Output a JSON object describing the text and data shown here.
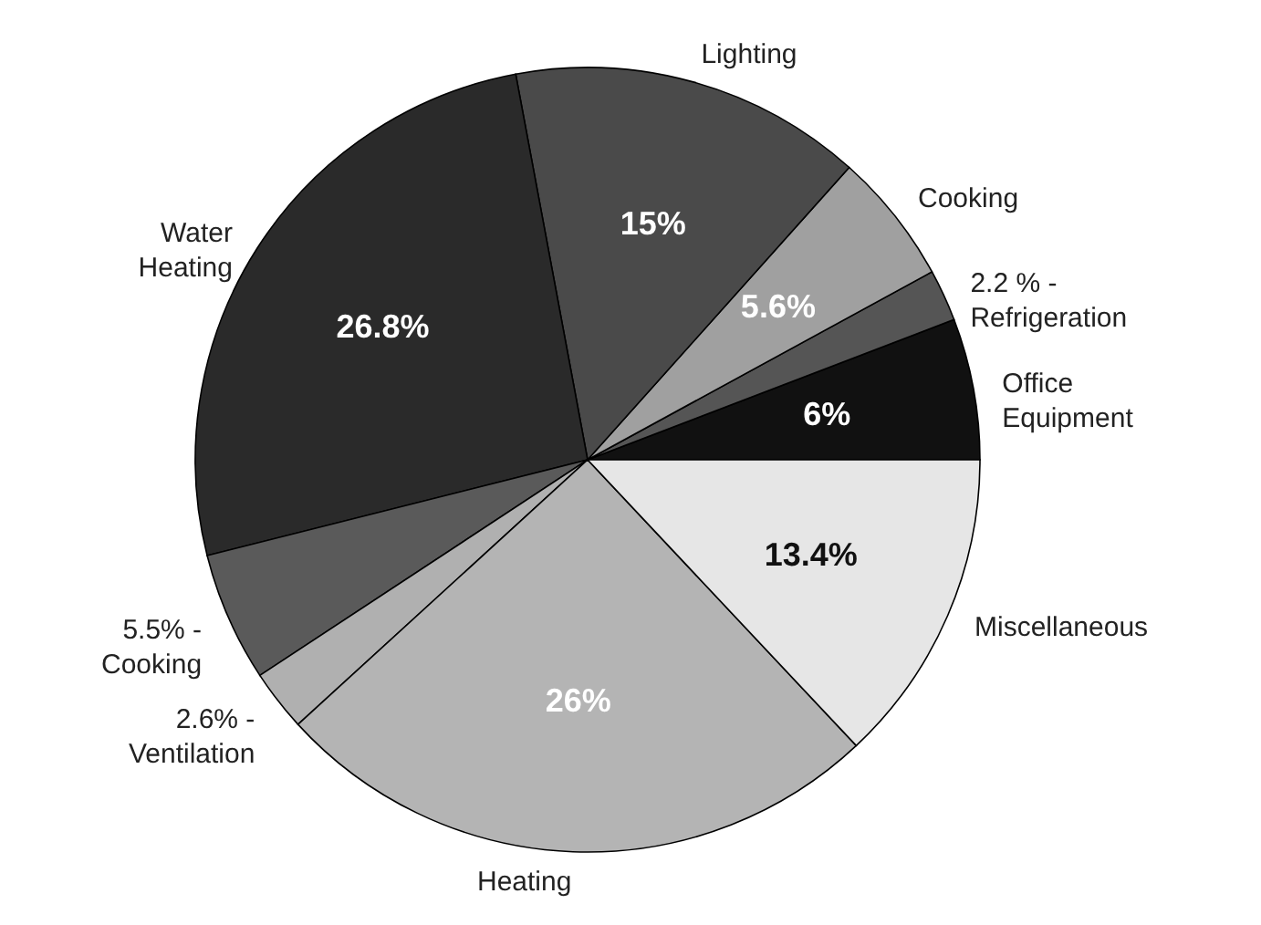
{
  "chart_data": {
    "type": "pie",
    "categories": [
      "Office Equipment",
      "2.2 % - Refrigeration",
      "Cooking",
      "Lighting",
      "Water Heating",
      "5.5% - Cooking",
      "2.6% - Ventilation",
      "Heating",
      "Miscellaneous"
    ],
    "values": [
      6,
      2.2,
      5.6,
      15,
      26.8,
      5.5,
      2.6,
      26,
      13.4
    ],
    "value_labels": [
      "6%",
      null,
      "5.6%",
      "15%",
      "26.8%",
      null,
      null,
      "26%",
      "13.4%"
    ],
    "colors": [
      "#111111",
      "#555555",
      "#a0a0a0",
      "#4a4a4a",
      "#2a2a2a",
      "#5a5a5a",
      "#b0b0b0",
      "#b4b4b4",
      "#e6e6e6"
    ]
  }
}
